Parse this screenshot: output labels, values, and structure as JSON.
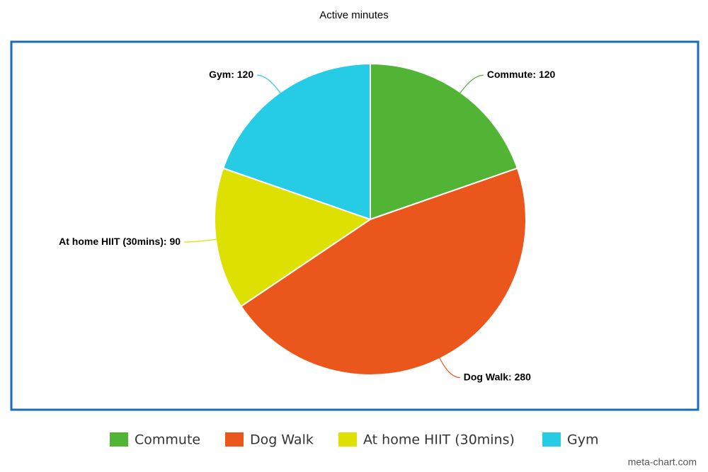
{
  "chart_data": {
    "type": "pie",
    "title": "Active minutes",
    "categories": [
      "Commute",
      "Dog Walk",
      "At home HIIT (30mins)",
      "Gym"
    ],
    "values": [
      120,
      280,
      90,
      120
    ],
    "value_labels": [
      "Commute: 120",
      "Dog Walk: 280",
      "At home HIIT (30mins): 90",
      "Gym: 120"
    ],
    "colors": [
      "#52b435",
      "#eb561d",
      "#dde000",
      "#26cbe5"
    ],
    "legend": "bottom",
    "watermark": "meta-chart.com"
  }
}
